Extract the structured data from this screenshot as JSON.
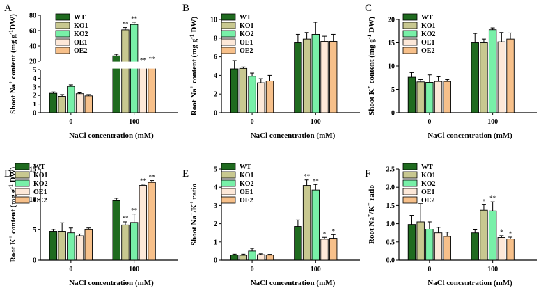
{
  "colors": {
    "WT": "#1f6b1f",
    "KO1": "#c8c890",
    "KO2": "#78f0a8",
    "OE1": "#fde8d8",
    "OE2": "#f7c08a"
  },
  "chart_data": [
    {
      "panel": "A",
      "type": "bar",
      "broken_axis": true,
      "xlabel": "NaCl concentration (mM)",
      "ylabel_parts": [
        "Shoot Na",
        "+",
        " content (mg g",
        "-1",
        "DW)"
      ],
      "categories": [
        "0",
        "100"
      ],
      "legend": [
        "WT",
        "KO1",
        "KO2",
        "OE1",
        "OE2"
      ],
      "lower_ylim": [
        0,
        5
      ],
      "lower_ticks": [
        "0",
        "1",
        "2",
        "3",
        "4",
        "5"
      ],
      "upper_ylim": [
        20,
        80
      ],
      "upper_ticks": [
        "20",
        "40",
        "60",
        "80"
      ],
      "series": [
        {
          "name": "WT",
          "values": [
            2.25,
            27
          ],
          "errors": [
            0.15,
            2
          ],
          "sig": [
            "",
            ""
          ]
        },
        {
          "name": "KO1",
          "values": [
            1.9,
            61
          ],
          "errors": [
            0.2,
            3
          ],
          "sig": [
            "",
            "**"
          ]
        },
        {
          "name": "KO2",
          "values": [
            3.05,
            68
          ],
          "errors": [
            0.18,
            3
          ],
          "sig": [
            "",
            "**"
          ]
        },
        {
          "name": "OE1",
          "values": [
            2.2,
            16
          ],
          "errors": [
            0.1,
            1
          ],
          "sig": [
            "",
            "**"
          ]
        },
        {
          "name": "OE2",
          "values": [
            1.95,
            17
          ],
          "errors": [
            0.15,
            1
          ],
          "sig": [
            "",
            "**"
          ]
        }
      ]
    },
    {
      "panel": "B",
      "type": "bar",
      "xlabel": "NaCl concentration (mM)",
      "ylabel_parts": [
        "Root Na",
        "+",
        " content (mg g",
        "-1",
        " DW)"
      ],
      "categories": [
        "0",
        "100"
      ],
      "legend": [
        "WT",
        "KO1",
        "KO2",
        "OE1",
        "OE2"
      ],
      "ylim": [
        0,
        10
      ],
      "ticks": [
        "0",
        "2",
        "4",
        "6",
        "8",
        "10"
      ],
      "series": [
        {
          "name": "WT",
          "values": [
            4.7,
            7.5
          ],
          "errors": [
            0.9,
            0.9
          ],
          "sig": [
            "",
            ""
          ]
        },
        {
          "name": "KO1",
          "values": [
            4.75,
            7.9
          ],
          "errors": [
            0.15,
            0.7
          ],
          "sig": [
            "",
            ""
          ]
        },
        {
          "name": "KO2",
          "values": [
            3.9,
            8.4
          ],
          "errors": [
            0.35,
            1.3
          ],
          "sig": [
            "",
            ""
          ]
        },
        {
          "name": "OE1",
          "values": [
            3.2,
            7.65
          ],
          "errors": [
            0.45,
            0.55
          ],
          "sig": [
            "",
            ""
          ]
        },
        {
          "name": "OE2",
          "values": [
            3.4,
            7.65
          ],
          "errors": [
            0.6,
            0.75
          ],
          "sig": [
            "",
            ""
          ]
        }
      ]
    },
    {
      "panel": "C",
      "type": "bar",
      "xlabel": "NaCl concentration (mM)",
      "ylabel_parts": [
        "Shoot K",
        "+",
        " content (mg g",
        "-1",
        " DW)"
      ],
      "categories": [
        "0",
        "100"
      ],
      "legend": [
        "WT",
        "KO1",
        "KO2",
        "OE1",
        "OE2"
      ],
      "ylim": [
        0,
        20
      ],
      "ticks": [
        "0",
        "5",
        "10",
        "15",
        "20"
      ],
      "series": [
        {
          "name": "WT",
          "values": [
            7.6,
            15
          ],
          "errors": [
            1.0,
            2.0
          ],
          "sig": [
            "",
            ""
          ]
        },
        {
          "name": "KO1",
          "values": [
            6.6,
            15
          ],
          "errors": [
            0.5,
            0.8
          ],
          "sig": [
            "",
            ""
          ]
        },
        {
          "name": "KO2",
          "values": [
            6.5,
            17.8
          ],
          "errors": [
            1.6,
            0.4
          ],
          "sig": [
            "",
            ""
          ]
        },
        {
          "name": "OE1",
          "values": [
            6.7,
            15.2
          ],
          "errors": [
            1.0,
            2.0
          ],
          "sig": [
            "",
            ""
          ]
        },
        {
          "name": "OE2",
          "values": [
            6.7,
            15.8
          ],
          "errors": [
            0.4,
            1.3
          ],
          "sig": [
            "",
            ""
          ]
        }
      ]
    },
    {
      "panel": "D",
      "type": "bar",
      "xlabel": "NaCl concentration (mM)",
      "ylabel_parts": [
        "Root K",
        "+",
        " content (mg g",
        "-1",
        " DW)"
      ],
      "categories": [
        "0",
        "100"
      ],
      "legend": [
        "WT",
        "KO1",
        "KO2",
        "OE1",
        "OE2"
      ],
      "ylim": [
        0,
        15
      ],
      "ticks": [
        "0",
        "5",
        "10",
        "15"
      ],
      "series": [
        {
          "name": "WT",
          "values": [
            4.75,
            9.8
          ],
          "errors": [
            0.3,
            0.4
          ],
          "sig": [
            "",
            ""
          ]
        },
        {
          "name": "KO1",
          "values": [
            4.75,
            5.8
          ],
          "errors": [
            1.4,
            0.5
          ],
          "sig": [
            "",
            "**"
          ]
        },
        {
          "name": "KO2",
          "values": [
            4.5,
            6.2
          ],
          "errors": [
            0.8,
            1.4
          ],
          "sig": [
            "",
            "**"
          ]
        },
        {
          "name": "OE1",
          "values": [
            4.0,
            12.3
          ],
          "errors": [
            0.3,
            0.2
          ],
          "sig": [
            "",
            "**"
          ]
        },
        {
          "name": "OE2",
          "values": [
            5.0,
            12.8
          ],
          "errors": [
            0.3,
            0.3
          ],
          "sig": [
            "",
            "**"
          ]
        }
      ]
    },
    {
      "panel": "E",
      "type": "bar",
      "xlabel": "NaCl concentration (mM)",
      "ylabel_parts": [
        "Shoot Na",
        "+",
        "/K",
        "+",
        " ratio"
      ],
      "categories": [
        "0",
        "100"
      ],
      "legend": [
        "WT",
        "KO1",
        "KO2",
        "OE1",
        "OE2"
      ],
      "ylim": [
        0,
        5
      ],
      "ticks": [
        "0",
        "1",
        "2",
        "3",
        "4",
        "5"
      ],
      "series": [
        {
          "name": "WT",
          "values": [
            0.28,
            1.85
          ],
          "errors": [
            0.05,
            0.35
          ],
          "sig": [
            "",
            ""
          ]
        },
        {
          "name": "KO1",
          "values": [
            0.27,
            4.1
          ],
          "errors": [
            0.06,
            0.3
          ],
          "sig": [
            "",
            "**"
          ]
        },
        {
          "name": "KO2",
          "values": [
            0.5,
            3.85
          ],
          "errors": [
            0.15,
            0.3
          ],
          "sig": [
            "",
            "**"
          ]
        },
        {
          "name": "OE1",
          "values": [
            0.3,
            1.15
          ],
          "errors": [
            0.05,
            0.1
          ],
          "sig": [
            "",
            "*"
          ]
        },
        {
          "name": "OE2",
          "values": [
            0.28,
            1.2
          ],
          "errors": [
            0.04,
            0.2
          ],
          "sig": [
            "",
            "*"
          ]
        }
      ]
    },
    {
      "panel": "F",
      "type": "bar",
      "xlabel": "NaCl concentration (mM)",
      "ylabel_parts": [
        "Root Na",
        "+",
        "/K",
        "+",
        " ratio"
      ],
      "categories": [
        "0",
        "100"
      ],
      "legend": [
        "WT",
        "KO1",
        "KO2",
        "OE1",
        "OE2"
      ],
      "ylim": [
        0,
        2.5
      ],
      "ticks": [
        "0.0",
        "0.5",
        "1.0",
        "1.5",
        "2.0",
        "2.5"
      ],
      "series": [
        {
          "name": "WT",
          "values": [
            0.98,
            0.75
          ],
          "errors": [
            0.25,
            0.08
          ],
          "sig": [
            "",
            ""
          ]
        },
        {
          "name": "KO1",
          "values": [
            1.05,
            1.37
          ],
          "errors": [
            0.5,
            0.15
          ],
          "sig": [
            "",
            "*"
          ]
        },
        {
          "name": "KO2",
          "values": [
            0.85,
            1.35
          ],
          "errors": [
            0.2,
            0.25
          ],
          "sig": [
            "",
            "**"
          ]
        },
        {
          "name": "OE1",
          "values": [
            0.75,
            0.62
          ],
          "errors": [
            0.15,
            0.05
          ],
          "sig": [
            "",
            "*"
          ]
        },
        {
          "name": "OE2",
          "values": [
            0.65,
            0.58
          ],
          "errors": [
            0.12,
            0.05
          ],
          "sig": [
            "",
            "*"
          ]
        }
      ]
    }
  ]
}
